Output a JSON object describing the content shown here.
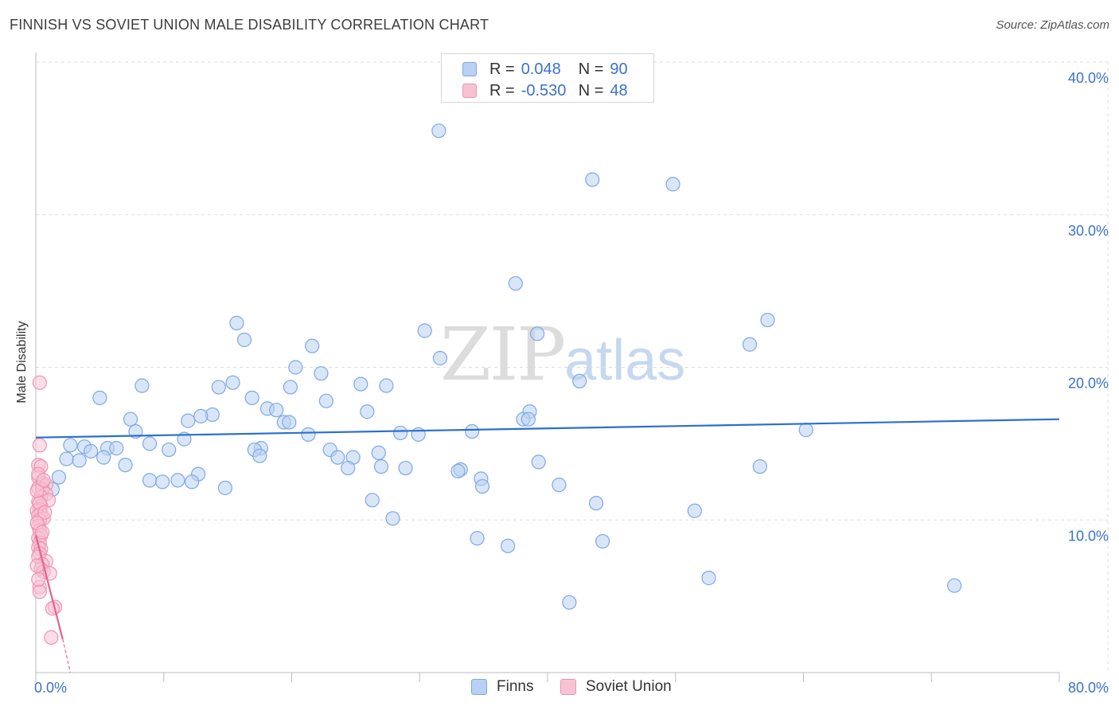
{
  "header": {
    "title": "FINNISH VS SOVIET UNION MALE DISABILITY CORRELATION CHART",
    "source": "Source: ZipAtlas.com"
  },
  "watermark": {
    "zip": "ZIP",
    "atlas": "atlas"
  },
  "legend": {
    "finns": {
      "r_label": "R =",
      "r_value": "0.048",
      "n_label": "N =",
      "n_value": "90",
      "name": "Finns"
    },
    "soviet": {
      "r_label": "R =",
      "r_value": "-0.530",
      "n_label": "N =",
      "n_value": "48",
      "name": "Soviet Union"
    }
  },
  "colors": {
    "finns_fill": "#b9d1f3",
    "finns_stroke": "#7ea8e3",
    "finns_line": "#2a6fcf",
    "soviet_fill": "#f7c3d3",
    "soviet_stroke": "#ee93b3",
    "soviet_line": "#e46390",
    "tick_label": "#3b72c9",
    "grid": "#dddddd"
  },
  "chart_data": {
    "type": "scatter",
    "title": "FINNISH VS SOVIET UNION MALE DISABILITY CORRELATION CHART",
    "xlabel": "",
    "ylabel": "Male Disability",
    "xlim": [
      0,
      80
    ],
    "ylim": [
      0,
      40
    ],
    "x_tick_labels": [
      "0.0%",
      "80.0%"
    ],
    "y_ticks": [
      10,
      20,
      30,
      40
    ],
    "y_tick_labels": [
      "10.0%",
      "20.0%",
      "30.0%",
      "40.0%"
    ],
    "grid": true,
    "series": [
      {
        "name": "Finns",
        "points": [
          [
            31.5,
            35.5
          ],
          [
            43.5,
            32.3
          ],
          [
            49.8,
            32.0
          ],
          [
            37.5,
            25.5
          ],
          [
            57.2,
            23.1
          ],
          [
            15.7,
            22.9
          ],
          [
            30.4,
            22.4
          ],
          [
            39.2,
            22.2
          ],
          [
            16.3,
            21.8
          ],
          [
            21.6,
            21.4
          ],
          [
            55.8,
            21.5
          ],
          [
            31.6,
            20.6
          ],
          [
            20.3,
            20.0
          ],
          [
            22.3,
            19.6
          ],
          [
            42.5,
            19.1
          ],
          [
            8.3,
            18.8
          ],
          [
            15.4,
            19.0
          ],
          [
            14.3,
            18.7
          ],
          [
            19.9,
            18.7
          ],
          [
            25.4,
            18.9
          ],
          [
            27.4,
            18.8
          ],
          [
            5.0,
            18.0
          ],
          [
            16.9,
            18.0
          ],
          [
            22.7,
            17.8
          ],
          [
            18.1,
            17.3
          ],
          [
            18.8,
            17.2
          ],
          [
            25.9,
            17.1
          ],
          [
            38.6,
            17.1
          ],
          [
            13.8,
            16.9
          ],
          [
            12.9,
            16.8
          ],
          [
            7.4,
            16.6
          ],
          [
            11.9,
            16.5
          ],
          [
            19.4,
            16.4
          ],
          [
            38.1,
            16.6
          ],
          [
            38.5,
            16.6
          ],
          [
            19.8,
            16.4
          ],
          [
            7.8,
            15.8
          ],
          [
            21.3,
            15.6
          ],
          [
            28.5,
            15.7
          ],
          [
            29.9,
            15.6
          ],
          [
            34.1,
            15.8
          ],
          [
            60.2,
            15.9
          ],
          [
            11.6,
            15.3
          ],
          [
            2.7,
            14.9
          ],
          [
            3.8,
            14.8
          ],
          [
            5.6,
            14.7
          ],
          [
            8.9,
            15.0
          ],
          [
            4.3,
            14.5
          ],
          [
            6.3,
            14.7
          ],
          [
            10.4,
            14.6
          ],
          [
            17.6,
            14.7
          ],
          [
            17.1,
            14.6
          ],
          [
            23.0,
            14.6
          ],
          [
            26.8,
            14.4
          ],
          [
            23.6,
            14.1
          ],
          [
            24.8,
            14.1
          ],
          [
            2.4,
            14.0
          ],
          [
            3.4,
            13.9
          ],
          [
            5.3,
            14.1
          ],
          [
            7.0,
            13.6
          ],
          [
            17.5,
            14.2
          ],
          [
            24.4,
            13.4
          ],
          [
            27.0,
            13.5
          ],
          [
            28.9,
            13.4
          ],
          [
            33.2,
            13.3
          ],
          [
            33.0,
            13.2
          ],
          [
            39.3,
            13.8
          ],
          [
            56.6,
            13.5
          ],
          [
            1.8,
            12.8
          ],
          [
            8.9,
            12.6
          ],
          [
            9.9,
            12.5
          ],
          [
            11.1,
            12.6
          ],
          [
            12.7,
            13.0
          ],
          [
            12.2,
            12.5
          ],
          [
            34.8,
            12.7
          ],
          [
            34.9,
            12.2
          ],
          [
            40.9,
            12.3
          ],
          [
            14.8,
            12.1
          ],
          [
            0.5,
            12.3
          ],
          [
            1.3,
            12.0
          ],
          [
            26.3,
            11.3
          ],
          [
            43.8,
            11.1
          ],
          [
            51.5,
            10.6
          ],
          [
            27.9,
            10.1
          ],
          [
            34.5,
            8.8
          ],
          [
            36.9,
            8.3
          ],
          [
            44.3,
            8.6
          ],
          [
            52.6,
            6.2
          ],
          [
            71.8,
            5.7
          ],
          [
            41.7,
            4.6
          ]
        ],
        "trend": {
          "x": [
            0,
            80
          ],
          "y": [
            15.4,
            16.6
          ]
        }
      },
      {
        "name": "Soviet Union",
        "points": [
          [
            0.3,
            19.0
          ],
          [
            0.3,
            14.9
          ],
          [
            0.2,
            13.6
          ],
          [
            0.4,
            13.5
          ],
          [
            0.2,
            12.8
          ],
          [
            0.5,
            12.4
          ],
          [
            0.8,
            12.3
          ],
          [
            0.2,
            12.1
          ],
          [
            0.5,
            12.0
          ],
          [
            0.8,
            11.7
          ],
          [
            0.4,
            11.5
          ],
          [
            1.0,
            11.3
          ],
          [
            0.2,
            11.2
          ],
          [
            0.4,
            10.9
          ],
          [
            0.3,
            10.7
          ],
          [
            0.1,
            10.6
          ],
          [
            0.4,
            10.4
          ],
          [
            0.2,
            10.3
          ],
          [
            0.6,
            10.1
          ],
          [
            0.3,
            10.0
          ],
          [
            0.2,
            9.6
          ],
          [
            0.3,
            9.3
          ],
          [
            0.4,
            9.0
          ],
          [
            0.2,
            8.8
          ],
          [
            0.3,
            8.5
          ],
          [
            0.2,
            8.2
          ],
          [
            0.4,
            8.1
          ],
          [
            0.3,
            7.8
          ],
          [
            0.2,
            7.6
          ],
          [
            0.8,
            7.3
          ],
          [
            0.5,
            7.1
          ],
          [
            0.4,
            6.8
          ],
          [
            0.6,
            6.6
          ],
          [
            1.1,
            6.5
          ],
          [
            0.3,
            5.6
          ],
          [
            0.3,
            5.3
          ],
          [
            1.5,
            4.3
          ],
          [
            1.3,
            4.2
          ],
          [
            1.2,
            2.3
          ],
          [
            0.2,
            13.0
          ],
          [
            0.6,
            12.6
          ],
          [
            0.1,
            11.9
          ],
          [
            0.3,
            11.1
          ],
          [
            0.7,
            10.5
          ],
          [
            0.1,
            9.8
          ],
          [
            0.5,
            9.2
          ],
          [
            0.1,
            7.0
          ],
          [
            0.2,
            6.1
          ]
        ],
        "trend": {
          "x": [
            0,
            2.1
          ],
          "y": [
            9.0,
            2.2
          ]
        },
        "trend_extension": {
          "x": [
            2.1,
            2.7
          ],
          "y": [
            2.2,
            0.0
          ]
        }
      }
    ]
  }
}
